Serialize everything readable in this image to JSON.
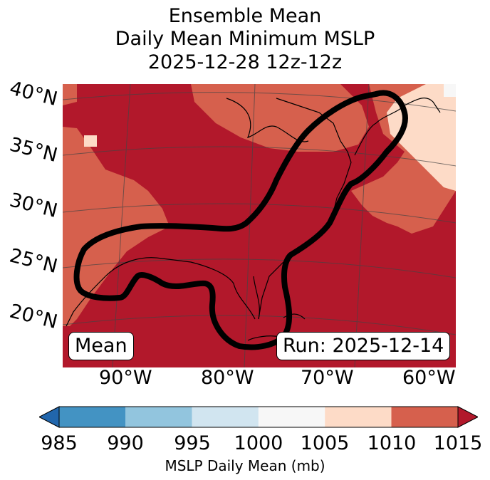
{
  "title": {
    "line1": "Ensemble Mean",
    "line2": "Daily Mean Minimum MSLP",
    "line3": "2025-12-28 12z-12z"
  },
  "map": {
    "lat_labels": [
      "40°N",
      "35°N",
      "30°N",
      "25°N",
      "20°N"
    ],
    "lon_labels": [
      "90°W",
      "80°W",
      "70°W",
      "60°W"
    ],
    "mean_box": "Mean",
    "run_box": "Run: 2025-12-14"
  },
  "colorbar": {
    "ticks": [
      "985",
      "990",
      "995",
      "1000",
      "1005",
      "1010",
      "1015"
    ],
    "label": "MSLP Daily Mean (mb)",
    "colors": [
      "#2166ac",
      "#4393c3",
      "#92c5de",
      "#d1e5f0",
      "#f7f7f7",
      "#fddbc7",
      "#d6604d",
      "#b2182b"
    ]
  }
}
